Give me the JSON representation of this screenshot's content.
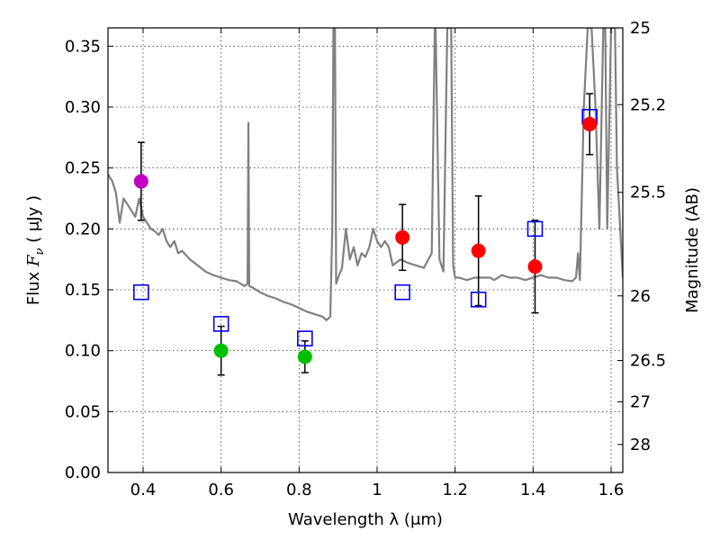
{
  "chart_data": {
    "type": "scatter",
    "xlabel": "Wavelength  λ (μm)",
    "ylabel_prefix": "Flux  ",
    "ylabel_var": "F",
    "ylabel_sub": "ν",
    "ylabel_unit": "  ( μJy )",
    "y2label": "Magnitude (AB)",
    "xlim": [
      0.31,
      1.63
    ],
    "ylim": [
      0.0,
      0.365
    ],
    "grid": true,
    "xticks": [
      {
        "value": 0.4,
        "label": "0.4"
      },
      {
        "value": 0.6,
        "label": "0.6"
      },
      {
        "value": 0.8,
        "label": "0.8"
      },
      {
        "value": 1.0,
        "label": "1"
      },
      {
        "value": 1.2,
        "label": "1.2"
      },
      {
        "value": 1.4,
        "label": "1.4"
      },
      {
        "value": 1.6,
        "label": "1.6"
      }
    ],
    "yticks": [
      {
        "value": 0.0,
        "label": "0.00"
      },
      {
        "value": 0.05,
        "label": "0.05"
      },
      {
        "value": 0.1,
        "label": "0.10"
      },
      {
        "value": 0.15,
        "label": "0.15"
      },
      {
        "value": 0.2,
        "label": "0.20"
      },
      {
        "value": 0.25,
        "label": "0.25"
      },
      {
        "value": 0.3,
        "label": "0.30"
      },
      {
        "value": 0.35,
        "label": "0.35"
      }
    ],
    "y2ticks": [
      {
        "flux": 0.365,
        "label": "25"
      },
      {
        "flux": 0.302,
        "label": "25.2"
      },
      {
        "flux": 0.23,
        "label": "25.5"
      },
      {
        "flux": 0.145,
        "label": "26"
      },
      {
        "flux": 0.092,
        "label": "26.5"
      },
      {
        "flux": 0.058,
        "label": "27"
      },
      {
        "flux": 0.023,
        "label": "28"
      }
    ],
    "model_spectrum": {
      "color": "#808080",
      "x": [
        0.31,
        0.315,
        0.32,
        0.33,
        0.34,
        0.35,
        0.36,
        0.37,
        0.38,
        0.39,
        0.4,
        0.41,
        0.42,
        0.43,
        0.44,
        0.45,
        0.46,
        0.47,
        0.48,
        0.49,
        0.5,
        0.52,
        0.54,
        0.56,
        0.58,
        0.6,
        0.62,
        0.64,
        0.66,
        0.668,
        0.67,
        0.672,
        0.68,
        0.7,
        0.72,
        0.74,
        0.76,
        0.78,
        0.8,
        0.82,
        0.84,
        0.86,
        0.87,
        0.88,
        0.885,
        0.888,
        0.89,
        0.892,
        0.895,
        0.9,
        0.91,
        0.92,
        0.93,
        0.94,
        0.95,
        0.96,
        0.97,
        0.98,
        0.99,
        1.0,
        1.01,
        1.02,
        1.03,
        1.04,
        1.06,
        1.08,
        1.1,
        1.12,
        1.14,
        1.148,
        1.15,
        1.16,
        1.17,
        1.18,
        1.19,
        1.195,
        1.2,
        1.205,
        1.21,
        1.23,
        1.25,
        1.27,
        1.29,
        1.3,
        1.32,
        1.34,
        1.36,
        1.38,
        1.4,
        1.42,
        1.44,
        1.46,
        1.48,
        1.5,
        1.51,
        1.515,
        1.52,
        1.53,
        1.54,
        1.55,
        1.56,
        1.565,
        1.57,
        1.58,
        1.585,
        1.59,
        1.6,
        1.605,
        1.61,
        1.615,
        1.62,
        1.63
      ],
      "y": [
        0.245,
        0.242,
        0.24,
        0.23,
        0.205,
        0.225,
        0.22,
        0.215,
        0.21,
        0.225,
        0.21,
        0.205,
        0.2,
        0.198,
        0.195,
        0.2,
        0.19,
        0.185,
        0.19,
        0.18,
        0.182,
        0.175,
        0.17,
        0.165,
        0.162,
        0.16,
        0.158,
        0.157,
        0.153,
        0.155,
        0.287,
        0.153,
        0.152,
        0.148,
        0.145,
        0.143,
        0.14,
        0.138,
        0.135,
        0.132,
        0.13,
        0.128,
        0.125,
        0.128,
        0.2,
        0.365,
        0.365,
        0.365,
        0.155,
        0.16,
        0.168,
        0.2,
        0.175,
        0.185,
        0.17,
        0.18,
        0.177,
        0.185,
        0.2,
        0.19,
        0.185,
        0.19,
        0.185,
        0.17,
        0.175,
        0.172,
        0.17,
        0.168,
        0.18,
        0.365,
        0.365,
        0.175,
        0.165,
        0.365,
        0.365,
        0.17,
        0.16,
        0.16,
        0.16,
        0.158,
        0.16,
        0.16,
        0.16,
        0.158,
        0.162,
        0.16,
        0.16,
        0.158,
        0.16,
        0.162,
        0.16,
        0.16,
        0.158,
        0.157,
        0.16,
        0.18,
        0.158,
        0.3,
        0.365,
        0.365,
        0.3,
        0.25,
        0.2,
        0.365,
        0.365,
        0.2,
        0.365,
        0.365,
        0.365,
        0.25,
        0.22,
        0.16
      ]
    },
    "measured_points": [
      {
        "x": 0.395,
        "y": 0.239,
        "err": 0.032,
        "color": "#bf00bf"
      },
      {
        "x": 0.6,
        "y": 0.1,
        "err": 0.02,
        "color": "#00bf00"
      },
      {
        "x": 0.815,
        "y": 0.095,
        "err": 0.013,
        "color": "#00bf00"
      },
      {
        "x": 1.065,
        "y": 0.193,
        "err": 0.027,
        "color": "#ff0000"
      },
      {
        "x": 1.26,
        "y": 0.182,
        "err": 0.045,
        "color": "#ff0000"
      },
      {
        "x": 1.405,
        "y": 0.169,
        "err": 0.038,
        "color": "#ff0000"
      },
      {
        "x": 1.545,
        "y": 0.286,
        "err": 0.025,
        "color": "#ff0000"
      }
    ],
    "model_points": {
      "color": "#0000ff",
      "x": [
        0.395,
        0.6,
        0.815,
        1.065,
        1.26,
        1.405,
        1.545
      ],
      "y": [
        0.148,
        0.122,
        0.11,
        0.148,
        0.142,
        0.2,
        0.292
      ]
    }
  }
}
